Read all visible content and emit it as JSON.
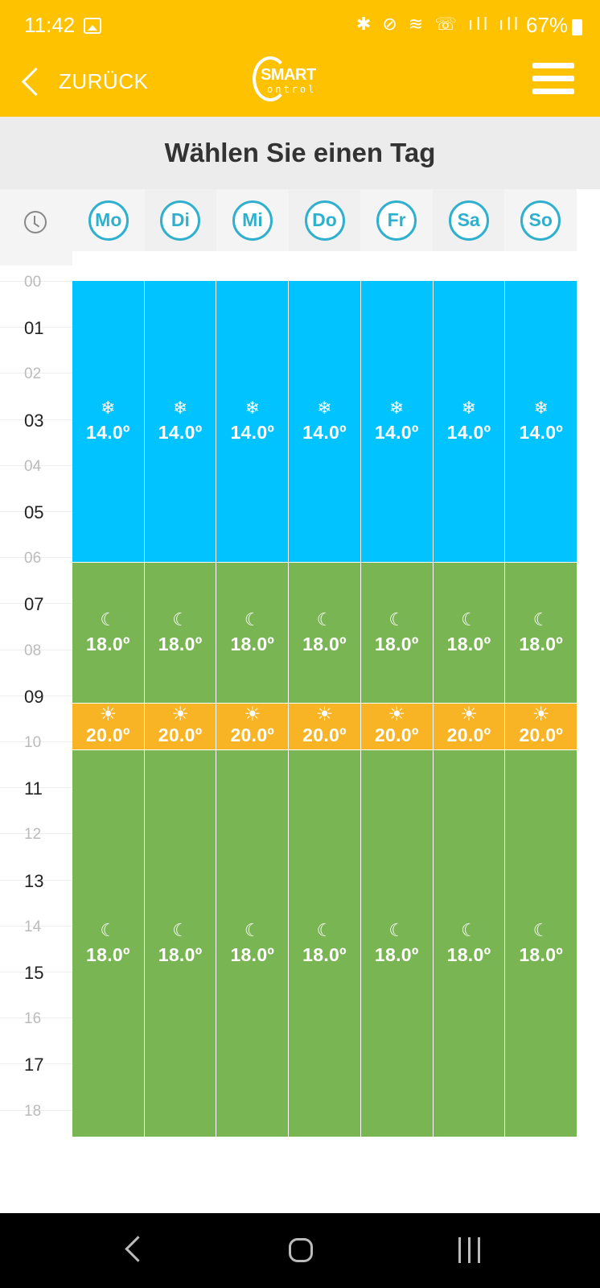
{
  "status": {
    "time": "11:42",
    "icons_text": "✱ ⊘ ≋ ☏ ıll ıll",
    "battery": "67%"
  },
  "header": {
    "back_label": "ZURÜCK",
    "logo_smart": "SMART",
    "logo_control": "ontrol"
  },
  "page": {
    "title": "Wählen Sie einen Tag"
  },
  "days": [
    "Mo",
    "Di",
    "Mi",
    "Do",
    "Fr",
    "Sa",
    "So"
  ],
  "hours": [
    "00",
    "01",
    "02",
    "03",
    "04",
    "05",
    "06",
    "07",
    "08",
    "09",
    "10",
    "11",
    "12",
    "13",
    "14",
    "15",
    "16",
    "17",
    "18"
  ],
  "schedule": [
    {
      "mode": "frost",
      "icon": "snowflake-icon",
      "glyph": "❄",
      "temp": "14.0º",
      "color": "#00C3FF"
    },
    {
      "mode": "night",
      "icon": "moon-icon",
      "glyph": "☾",
      "temp": "18.0º",
      "color": "#7AB554"
    },
    {
      "mode": "comfort",
      "icon": "sun-icon",
      "glyph": "☀",
      "temp": "20.0º",
      "color": "#F8B424"
    },
    {
      "mode": "night",
      "icon": "moon-icon",
      "glyph": "☾",
      "temp": "18.0º",
      "color": "#7AB554"
    }
  ],
  "colors": {
    "appbar": "#FFC200",
    "day_accent": "#2FB0CF"
  }
}
